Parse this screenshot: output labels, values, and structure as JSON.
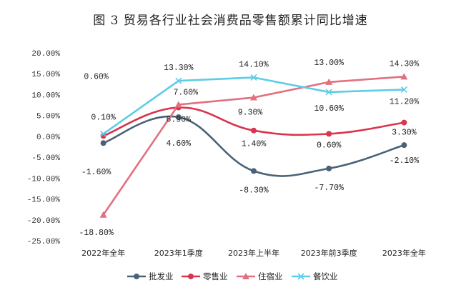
{
  "chart_data": {
    "type": "line",
    "title": "图 3   贸易各行业社会消费品零售额累计同比增速",
    "categories": [
      "2022年全年",
      "2023年1季度",
      "2023年上半年",
      "2023年前3季度",
      "2023年全年"
    ],
    "ylim": [
      -25,
      20
    ],
    "yticks": [
      "20.00%",
      "15.00%",
      "10.00%",
      "5.00%",
      "0.00%",
      "-5.00%",
      "-10.00%",
      "-15.00%",
      "-20.00%",
      "-25.00%"
    ],
    "grid": false,
    "legend_position": "bottom",
    "series": [
      {
        "name": "批发业",
        "color": "#4a6278",
        "marker": "circle",
        "smooth": true,
        "values": [
          -1.6,
          4.6,
          -8.3,
          -7.7,
          -2.1
        ],
        "labels": [
          "-1.60%",
          "4.60%",
          "-8.30%",
          "-7.70%",
          "-2.10%"
        ]
      },
      {
        "name": "零售业",
        "color": "#d9354f",
        "marker": "circle",
        "smooth": true,
        "values": [
          0.1,
          6.9,
          1.4,
          0.6,
          3.3
        ],
        "labels": [
          "0.10%",
          "6.90%",
          "1.40%",
          "0.60%",
          "3.30%"
        ]
      },
      {
        "name": "住宿业",
        "color": "#e27080",
        "marker": "triangle",
        "smooth": false,
        "values": [
          -18.8,
          7.6,
          9.3,
          13.0,
          14.3
        ],
        "labels": [
          "-18.80%",
          "7.60%",
          "9.30%",
          "13.00%",
          "14.30%"
        ]
      },
      {
        "name": "餐饮业",
        "color": "#5ccde6",
        "marker": "cross",
        "smooth": false,
        "values": [
          0.6,
          13.3,
          14.1,
          10.6,
          11.2
        ],
        "labels": [
          "0.60%",
          "13.30%",
          "14.10%",
          "10.60%",
          "11.20%"
        ]
      }
    ]
  }
}
